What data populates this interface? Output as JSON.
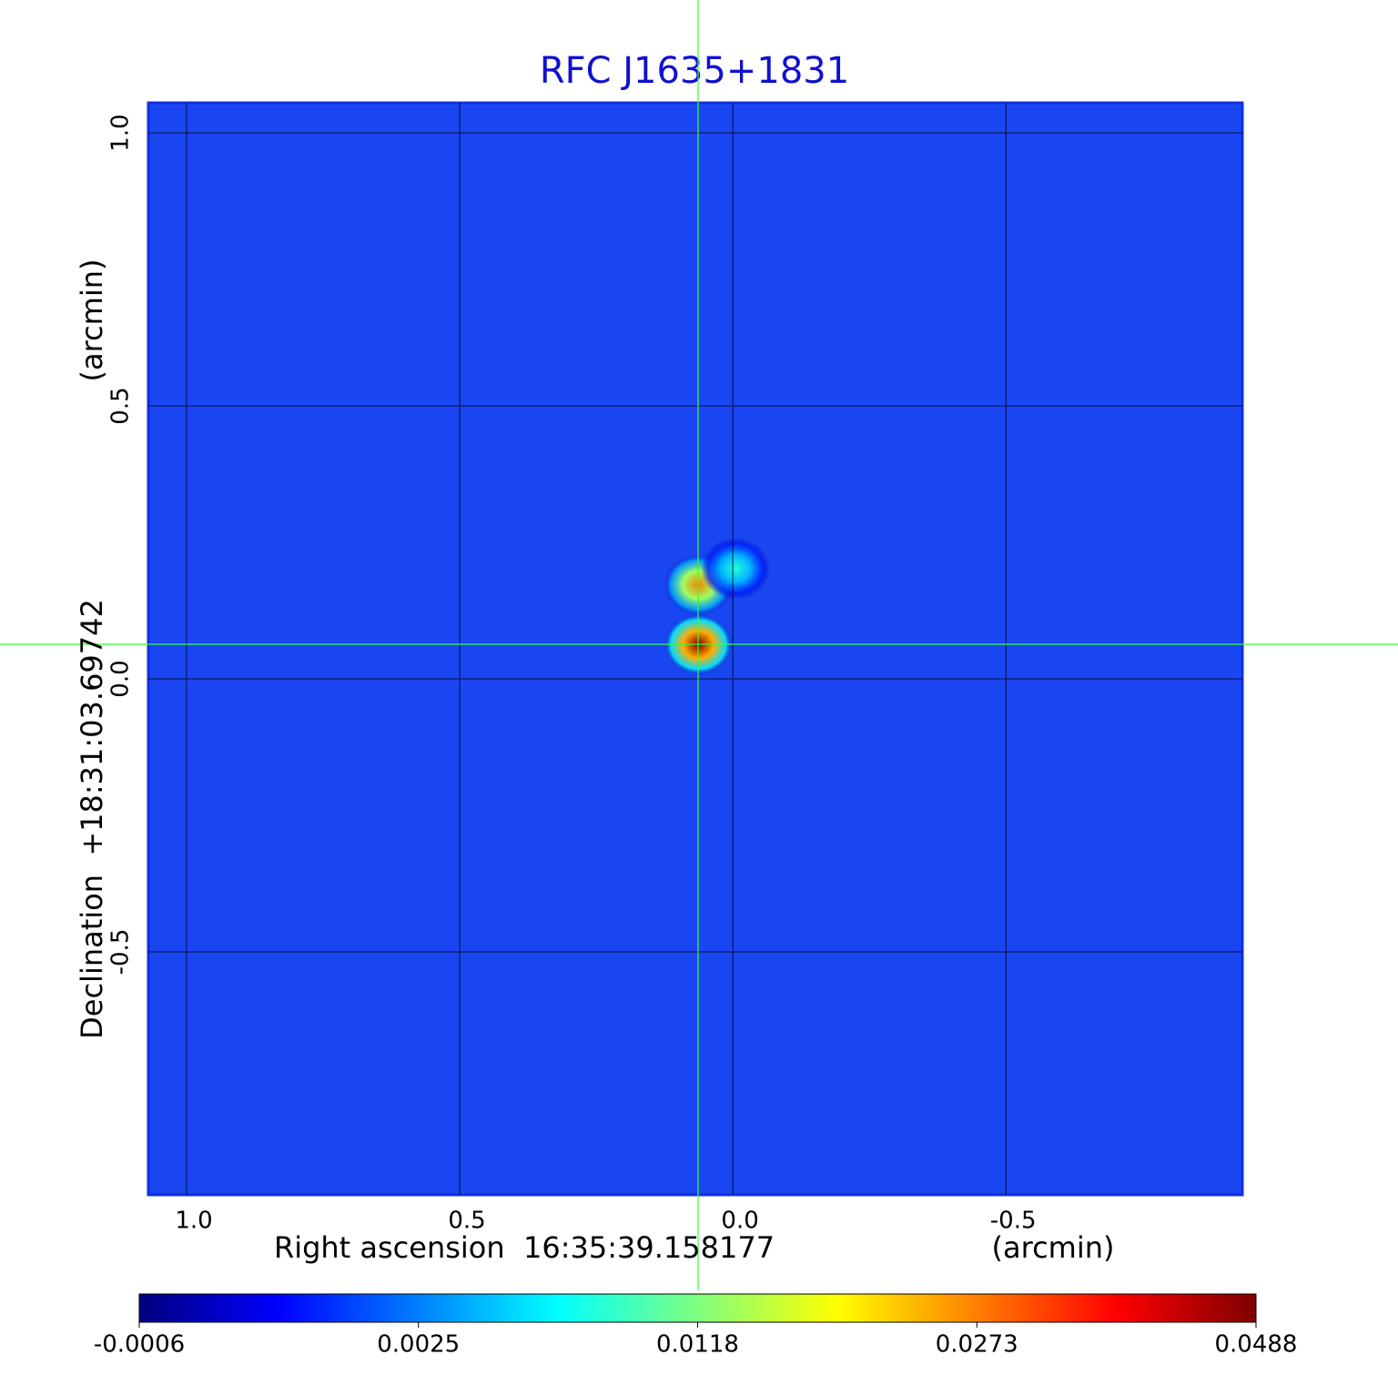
{
  "chart_data": {
    "type": "image",
    "title": "RFC J1635+1831",
    "xlabel": "Right ascension  16:35:39.158177",
    "xunit": "(arcmin)",
    "ylabel": "Declination  +18:31:03.69742",
    "yunit": "(arcmin)",
    "xlim": [
      1.07,
      -0.933
    ],
    "ylim": [
      -0.945,
      1.055
    ],
    "xticks": [
      {
        "value": 1,
        "label": "1.0"
      },
      0.5,
      {
        "value": 0,
        "label": "0.0"
      },
      -0.5
    ],
    "yticks": [
      {
        "value": 1,
        "label": "1.0"
      },
      0.5,
      {
        "value": 0,
        "label": "0.0"
      },
      -0.5
    ],
    "grid": true,
    "components": [
      {
        "x": 0.063,
        "y": 0.063,
        "value": 0.0488
      },
      {
        "x": 0.063,
        "y": 0.172,
        "value": 0.0273
      },
      {
        "x": -0.005,
        "y": 0.202,
        "value": 0.0085
      }
    ],
    "colorbar_ticks": [
      -0.0006,
      0.0025,
      0.0118,
      0.0273,
      0.0488
    ],
    "colormap": [
      "#00007f",
      "#0000ff",
      "#007fff",
      "#00ffff",
      "#7fff7f",
      "#ffff00",
      "#ff7f00",
      "#ff0000",
      "#7f0000"
    ]
  }
}
